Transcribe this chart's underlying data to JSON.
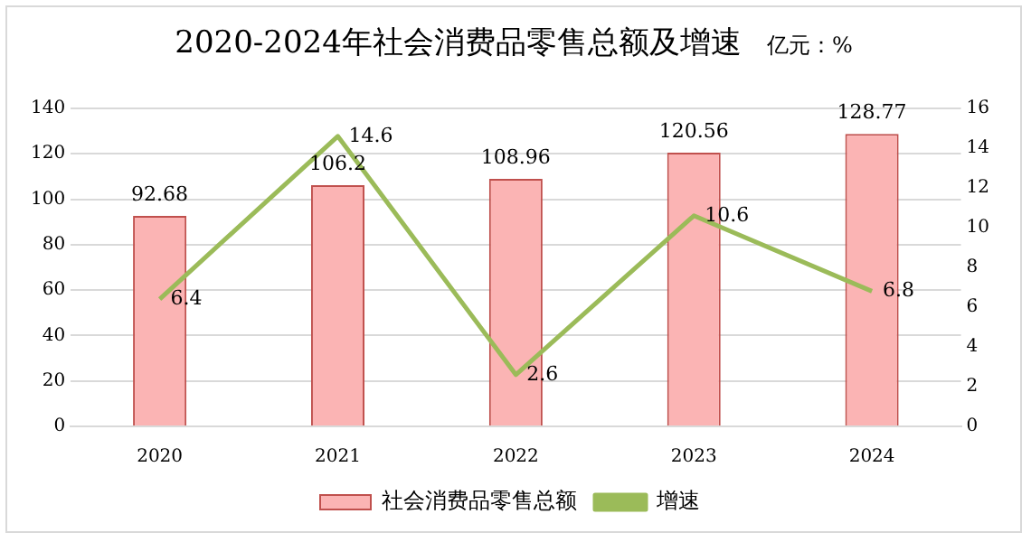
{
  "chart_data": {
    "type": "bar",
    "title": "2020-2024年社会消费品零售总额及增速",
    "subtitle": "亿元：%",
    "categories": [
      "2020",
      "2021",
      "2022",
      "2023",
      "2024"
    ],
    "series": [
      {
        "name": "社会消费品零售总额",
        "color": "#fbb4b4",
        "values": [
          92.68,
          106.2,
          108.96,
          120.56,
          128.77
        ]
      },
      {
        "name": "增速",
        "type": "line",
        "axis": "y2",
        "color": "#9bbb59",
        "values": [
          6.4,
          14.6,
          2.6,
          10.6,
          6.8
        ]
      }
    ],
    "ylim": [
      0,
      140
    ],
    "yticks": [
      0,
      20,
      40,
      60,
      80,
      100,
      120,
      140
    ],
    "y2lim": [
      0,
      16
    ],
    "y2ticks": [
      0,
      2,
      4,
      6,
      8,
      10,
      12,
      14,
      16
    ],
    "grid": "y",
    "legend": "bottom",
    "data_labels": true,
    "marker": "none"
  }
}
